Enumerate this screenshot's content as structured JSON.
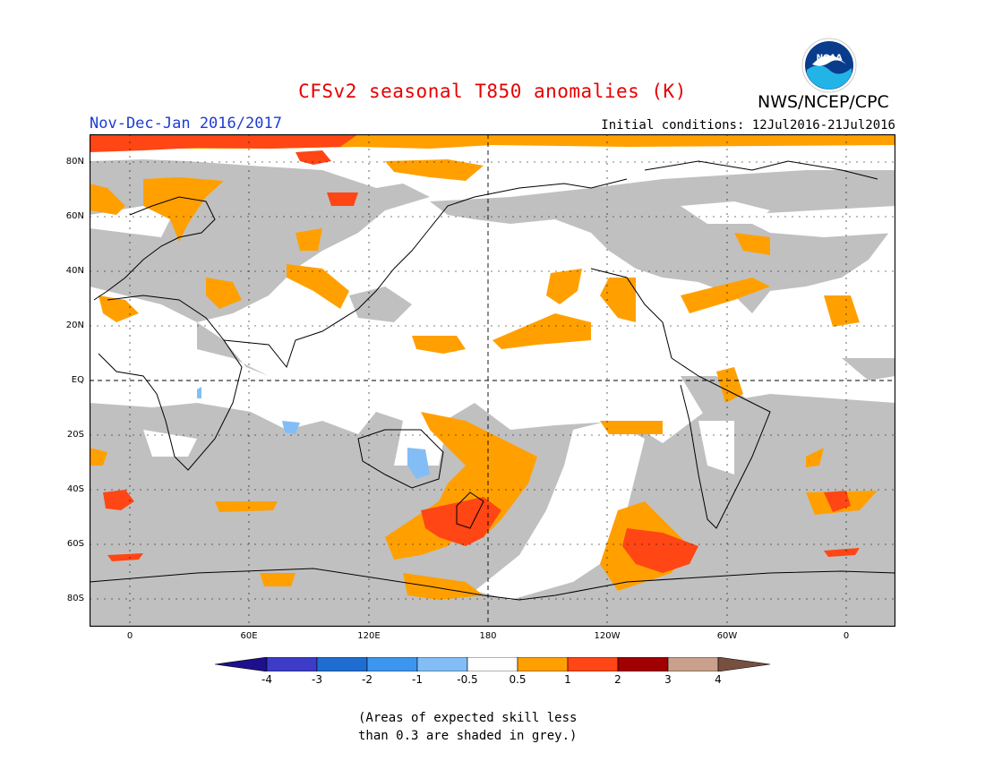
{
  "title": "CFSv2 seasonal T850 anomalies (K)",
  "agency": "NWS/NCEP/CPC",
  "logo_text": "NOAA",
  "period": "Nov-Dec-Jan 2016/2017",
  "initial_conditions": "Initial conditions: 12Jul2016-21Jul2016",
  "lat_labels": [
    "80N",
    "60N",
    "40N",
    "20N",
    "EQ",
    "20S",
    "40S",
    "60S",
    "80S"
  ],
  "lon_labels": [
    "0",
    "60E",
    "120E",
    "180",
    "120W",
    "60W",
    "0"
  ],
  "colorbar": {
    "labels": [
      "-4",
      "-3",
      "-2",
      "-1",
      "-0.5",
      "0.5",
      "1",
      "2",
      "3",
      "4"
    ],
    "colors": [
      "#1e0f8c",
      "#3c3cc8",
      "#1e6ed2",
      "#3c96f0",
      "#82bef5",
      "#ffffff",
      "#ffa000",
      "#ff4614",
      "#a00000",
      "#c8a08c",
      "#785040"
    ]
  },
  "legend_colors": {
    "grey_low_skill": "#c0c0c0",
    "warm_0.5_1": "#ffa000",
    "warm_1_2": "#ff4614",
    "cool_-1_-0.5": "#82bef5"
  },
  "note_line1": "(Areas of expected skill less",
  "note_line2": "than 0.3 are shaded in grey.)"
}
